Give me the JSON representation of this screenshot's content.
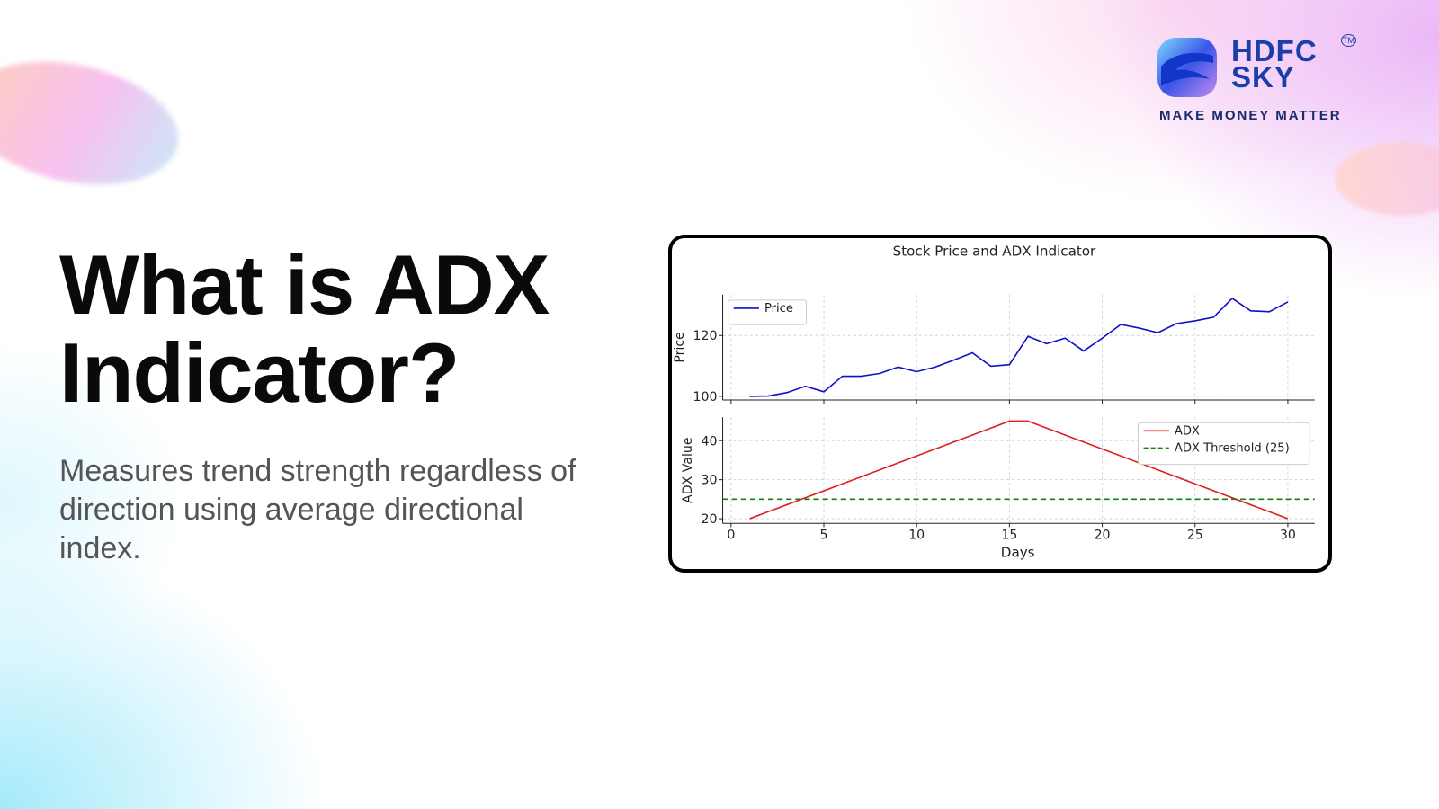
{
  "logo": {
    "line1": "HDFC",
    "line2": "SKY",
    "mark": "TM",
    "tagline": "MAKE MONEY MATTER"
  },
  "heading": [
    "What is ADX",
    "Indicator?"
  ],
  "description": "Measures trend strength regardless of direction using average directional index.",
  "chart_data": [
    {
      "type": "line",
      "title": "Stock Price and ADX Indicator",
      "ylabel": "Price",
      "x": [
        1,
        2,
        3,
        4,
        5,
        6,
        7,
        8,
        9,
        10,
        11,
        12,
        13,
        14,
        15,
        16,
        17,
        18,
        19,
        20,
        21,
        22,
        23,
        24,
        25,
        26,
        27,
        28,
        29,
        30
      ],
      "series": [
        {
          "name": "Price",
          "color": "#1010c8",
          "values": [
            100,
            100.1,
            101.2,
            103.3,
            101.5,
            106.6,
            106.6,
            107.5,
            109.6,
            108.1,
            109.6,
            111.9,
            114.3,
            109.9,
            110.4,
            119.7,
            117.3,
            119.1,
            114.9,
            119.1,
            123.6,
            122.4,
            120.9,
            123.9,
            124.8,
            126,
            132.2,
            128.1,
            127.8,
            131
          ]
        }
      ],
      "ylim": [
        98.8,
        133.4
      ],
      "yticks": [
        100,
        120
      ],
      "grid": true,
      "legend": "upper left"
    },
    {
      "type": "line",
      "xlabel": "Days",
      "ylabel": "ADX Value",
      "x": [
        1,
        2,
        3,
        4,
        5,
        6,
        7,
        8,
        9,
        10,
        11,
        12,
        13,
        14,
        15,
        16,
        17,
        18,
        19,
        20,
        21,
        22,
        23,
        24,
        25,
        26,
        27,
        28,
        29,
        30
      ],
      "series": [
        {
          "name": "ADX",
          "color": "#e02020",
          "values": [
            20,
            21.79,
            23.57,
            25.36,
            27.14,
            28.93,
            30.71,
            32.5,
            34.29,
            36.07,
            37.86,
            39.64,
            41.43,
            43.21,
            45,
            45,
            43.21,
            41.43,
            39.64,
            37.86,
            36.07,
            34.29,
            32.5,
            30.71,
            28.93,
            27.14,
            25.36,
            23.57,
            21.79,
            20
          ]
        }
      ],
      "hlines": [
        {
          "name": "ADX Threshold (25)",
          "value": 25,
          "color": "#108010",
          "dashed": true
        }
      ],
      "xlim": [
        -0.45,
        31.45
      ],
      "xticks": [
        0,
        5,
        10,
        15,
        20,
        25,
        30
      ],
      "ylim": [
        18.8,
        46
      ],
      "yticks": [
        20,
        30,
        40
      ],
      "grid": true,
      "legend": "upper right"
    }
  ]
}
